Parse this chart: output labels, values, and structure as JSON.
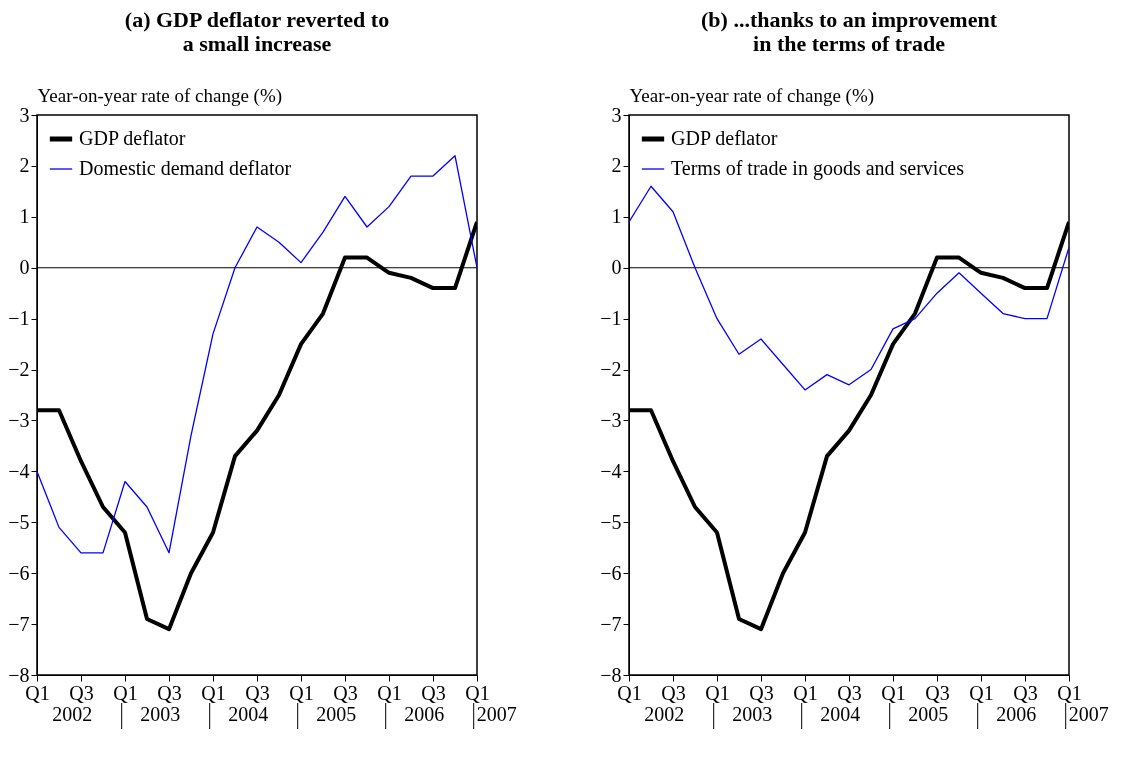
{
  "chart_data": [
    {
      "type": "line",
      "title": "(a) GDP deflator reverted to a small increase",
      "ylabel": "Year-on-year rate of change (%)",
      "categories": [
        "Q1",
        null,
        "Q3",
        null,
        "Q1",
        null,
        "Q3",
        null,
        "Q1",
        null,
        "Q3",
        null,
        "Q1",
        null,
        "Q3",
        null,
        "Q1",
        null,
        "Q3",
        null,
        "Q1"
      ],
      "series": [
        {
          "name": "GDP deflator",
          "color": "#000000",
          "values": [
            -2.8,
            -2.8,
            -3.8,
            -4.7,
            -5.2,
            -6.9,
            -7.1,
            -6.0,
            -5.2,
            -3.7,
            -3.2,
            -2.5,
            -1.5,
            -0.9,
            0.2,
            0.2,
            -0.1,
            -0.2,
            -0.4,
            -0.4,
            0.9
          ]
        },
        {
          "name": "Domestic demand deflator",
          "color": "#0000ff",
          "values": [
            -4.0,
            -5.1,
            -5.6,
            -5.6,
            -4.2,
            -4.7,
            -5.6,
            -3.3,
            -1.3,
            0.0,
            0.8,
            0.5,
            0.1,
            0.7,
            1.4,
            0.8,
            1.2,
            1.8,
            1.8,
            2.2,
            0.0
          ]
        }
      ],
      "ylim": [
        -8,
        3
      ],
      "yticks": [
        -8,
        -7,
        -6,
        -5,
        -4,
        -3,
        -2,
        -1,
        0,
        1,
        2,
        3
      ],
      "legend": "top left",
      "ref_lines": [
        {
          "axis": "y",
          "value": 0,
          "color": "#000000"
        }
      ],
      "annotations": [
        "2002",
        "2003",
        "2004",
        "2005",
        "2006",
        "2007"
      ]
    },
    {
      "type": "line",
      "title": "(b) ...thanks to an improvement in the terms of trade",
      "ylabel": "Year-on-year rate of change (%)",
      "categories": [
        "Q1",
        null,
        "Q3",
        null,
        "Q1",
        null,
        "Q3",
        null,
        "Q1",
        null,
        "Q3",
        null,
        "Q1",
        null,
        "Q3",
        null,
        "Q1",
        null,
        "Q3",
        null,
        "Q1"
      ],
      "series": [
        {
          "name": "GDP deflator",
          "color": "#000000",
          "values": [
            -2.8,
            -2.8,
            -3.8,
            -4.7,
            -5.2,
            -6.9,
            -7.1,
            -6.0,
            -5.2,
            -3.7,
            -3.2,
            -2.5,
            -1.5,
            -0.9,
            0.2,
            0.2,
            -0.1,
            -0.2,
            -0.4,
            -0.4,
            0.9
          ]
        },
        {
          "name": "Terms of trade in goods and services",
          "color": "#0000ff",
          "values": [
            0.9,
            1.6,
            1.1,
            0.0,
            -1.0,
            -1.7,
            -1.4,
            -1.9,
            -2.4,
            -2.1,
            -2.3,
            -2.0,
            -1.2,
            -1.0,
            -0.5,
            -0.1,
            -0.5,
            -0.9,
            -1.0,
            -1.0,
            0.4
          ]
        }
      ],
      "ylim": [
        -8,
        3
      ],
      "yticks": [
        -8,
        -7,
        -6,
        -5,
        -4,
        -3,
        -2,
        -1,
        0,
        1,
        2,
        3
      ],
      "legend": "top left",
      "ref_lines": [
        {
          "axis": "y",
          "value": 0,
          "color": "#000000"
        }
      ],
      "annotations": [
        "2002",
        "2003",
        "2004",
        "2005",
        "2006",
        "2007"
      ]
    }
  ]
}
